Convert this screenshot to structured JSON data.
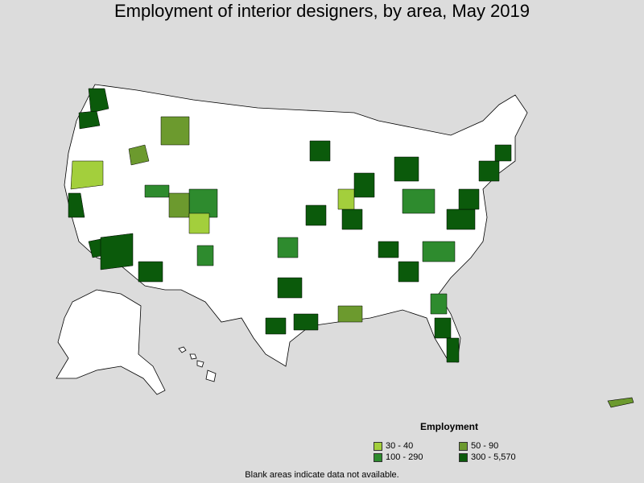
{
  "title": "Employment of interior designers, by area, May 2019",
  "footnote": "Blank areas indicate data not available.",
  "legend": {
    "title": "Employment",
    "items": [
      {
        "label": "30 - 40",
        "color": "#a3cf3c"
      },
      {
        "label": "50 - 90",
        "color": "#6c9a2e"
      },
      {
        "label": "100 - 290",
        "color": "#2e8b2e"
      },
      {
        "label": "300 - 5,570",
        "color": "#0b5a0b"
      }
    ]
  },
  "colors": {
    "background": "#dcdcdc",
    "land": "#ffffff",
    "border": "#000000"
  }
}
